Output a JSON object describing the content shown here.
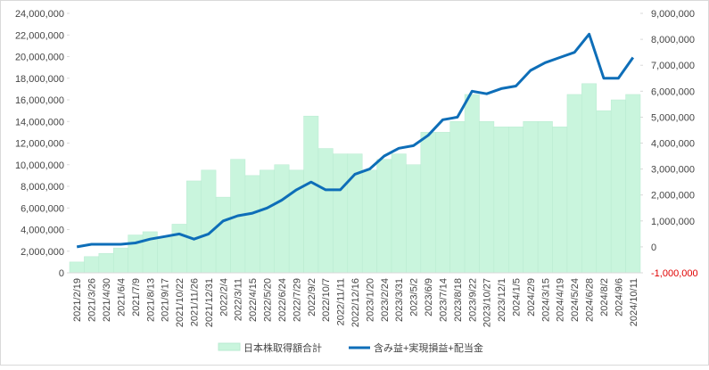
{
  "chart_data": {
    "type": "bar-line",
    "categories": [
      "2021/2/19",
      "2021/3/26",
      "2021/4/30",
      "2021/6/4",
      "2021/7/9",
      "2021/8/13",
      "2021/9/17",
      "2021/10/22",
      "2021/11/26",
      "2021/12/31",
      "2022/2/4",
      "2022/3/11",
      "2022/4/15",
      "2022/5/20",
      "2022/6/24",
      "2022/7/29",
      "2022/9/2",
      "2022/10/7",
      "2022/11/11",
      "2022/12/16",
      "2023/1/20",
      "2023/2/24",
      "2023/3/31",
      "2023/5/2",
      "2023/6/9",
      "2023/7/14",
      "2023/8/18",
      "2023/9/22",
      "2023/10/27",
      "2023/12/1",
      "2024/1/5",
      "2024/2/9",
      "2024/3/15",
      "2024/4/19",
      "2024/5/24",
      "2024/6/28",
      "2024/8/2",
      "2024/9/6",
      "2024/10/11"
    ],
    "series": [
      {
        "name": "日本株取得額合計",
        "type": "bar",
        "color": "#c9f5dd",
        "values": [
          1000000,
          1500000,
          1800000,
          2300000,
          3500000,
          3800000,
          3300000,
          4500000,
          8500000,
          9500000,
          7000000,
          10500000,
          9000000,
          9500000,
          10000000,
          9500000,
          14500000,
          11500000,
          11000000,
          11000000,
          9500000,
          10500000,
          11000000,
          10000000,
          13000000,
          13000000,
          14000000,
          16500000,
          14000000,
          13500000,
          13500000,
          14000000,
          14000000,
          13500000,
          16500000,
          17500000,
          15000000,
          16000000,
          16500000
        ]
      },
      {
        "name": "含み益+実現損益+配当金",
        "type": "line",
        "axis": "y2",
        "color": "#0e6eb8",
        "values": [
          0,
          100000,
          100000,
          100000,
          150000,
          300000,
          400000,
          500000,
          300000,
          500000,
          1000000,
          1200000,
          1300000,
          1500000,
          1800000,
          2200000,
          2500000,
          2200000,
          2200000,
          2800000,
          3000000,
          3500000,
          3800000,
          3900000,
          4300000,
          4900000,
          5000000,
          6000000,
          5900000,
          6100000,
          6200000,
          6800000,
          7100000,
          7300000,
          7500000,
          8200000,
          6500000,
          6500000,
          7300000
        ]
      }
    ],
    "ylim": [
      0,
      24000000
    ],
    "yticks": [
      {
        "value": 0,
        "label": "0"
      },
      {
        "value": 2000000,
        "label": "2,000,000"
      },
      {
        "value": 4000000,
        "label": "4,000,000"
      },
      {
        "value": 6000000,
        "label": "6,000,000"
      },
      {
        "value": 8000000,
        "label": "8,000,000"
      },
      {
        "value": 10000000,
        "label": "10,000,000"
      },
      {
        "value": 12000000,
        "label": "12,000,000"
      },
      {
        "value": 14000000,
        "label": "14,000,000"
      },
      {
        "value": 16000000,
        "label": "16,000,000"
      },
      {
        "value": 18000000,
        "label": "18,000,000"
      },
      {
        "value": 20000000,
        "label": "20,000,000"
      },
      {
        "value": 22000000,
        "label": "22,000,000"
      },
      {
        "value": 24000000,
        "label": "24,000,000"
      }
    ],
    "y2lim": [
      -1000000,
      9000000
    ],
    "y2ticks": [
      {
        "value": -1000000,
        "label": "-1,000,000"
      },
      {
        "value": 0,
        "label": "0"
      },
      {
        "value": 1000000,
        "label": "1,000,000"
      },
      {
        "value": 2000000,
        "label": "2,000,000"
      },
      {
        "value": 3000000,
        "label": "3,000,000"
      },
      {
        "value": 4000000,
        "label": "4,000,000"
      },
      {
        "value": 5000000,
        "label": "5,000,000"
      },
      {
        "value": 6000000,
        "label": "6,000,000"
      },
      {
        "value": 7000000,
        "label": "7,000,000"
      },
      {
        "value": 8000000,
        "label": "8,000,000"
      },
      {
        "value": 9000000,
        "label": "9,000,000"
      }
    ],
    "negative_color": "#e00000",
    "legend": "bottom"
  }
}
